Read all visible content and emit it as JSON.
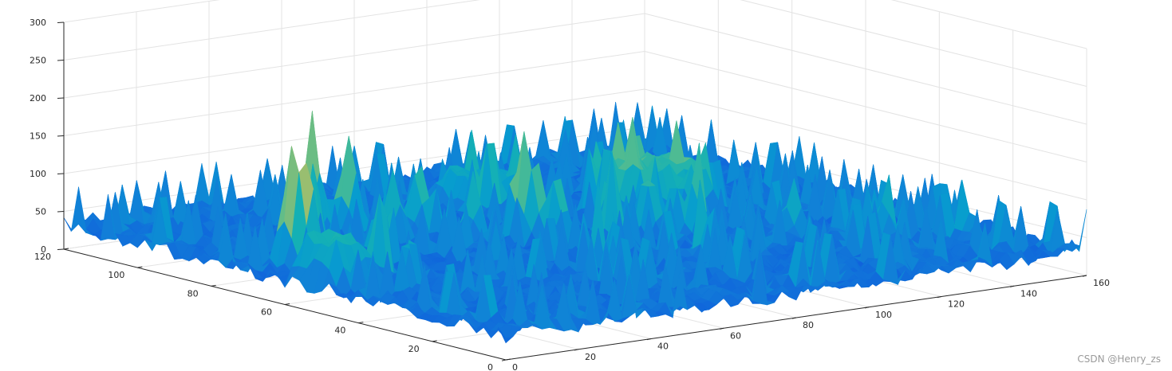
{
  "chart_data": {
    "type": "surface3d",
    "colormap": "parula",
    "grid": true,
    "x_axis": {
      "ticks": [
        0,
        20,
        40,
        60,
        80,
        100,
        120,
        140,
        160
      ],
      "range": [
        0,
        160
      ]
    },
    "y_axis": {
      "ticks": [
        0,
        20,
        40,
        60,
        80,
        100,
        120
      ],
      "range": [
        0,
        120
      ]
    },
    "z_axis": {
      "ticks": [
        0,
        50,
        100,
        150,
        200,
        250,
        300
      ],
      "range": [
        0,
        300
      ]
    },
    "base_level": 30,
    "peaks": [
      {
        "x": 12,
        "y": 70,
        "z": 180
      },
      {
        "x": 14,
        "y": 67,
        "z": 150
      },
      {
        "x": 38,
        "y": 90,
        "z": 185
      },
      {
        "x": 44,
        "y": 86,
        "z": 160
      },
      {
        "x": 27,
        "y": 80,
        "z": 95
      },
      {
        "x": 48,
        "y": 78,
        "z": 120
      },
      {
        "x": 57,
        "y": 80,
        "z": 130
      },
      {
        "x": 62,
        "y": 70,
        "z": 115
      },
      {
        "x": 72,
        "y": 65,
        "z": 130
      },
      {
        "x": 75,
        "y": 60,
        "z": 125
      },
      {
        "x": 85,
        "y": 55,
        "z": 120
      },
      {
        "x": 95,
        "y": 55,
        "z": 125
      },
      {
        "x": 103,
        "y": 50,
        "z": 110
      },
      {
        "x": 112,
        "y": 60,
        "z": 110
      },
      {
        "x": 120,
        "y": 40,
        "z": 105
      },
      {
        "x": 134,
        "y": 30,
        "z": 85
      },
      {
        "x": 148,
        "y": 20,
        "z": 70
      },
      {
        "x": 31,
        "y": 65,
        "z": 100
      },
      {
        "x": 20,
        "y": 55,
        "z": 90
      },
      {
        "x": 66,
        "y": 40,
        "z": 85
      },
      {
        "x": 90,
        "y": 35,
        "z": 80
      }
    ],
    "plateaus": [
      {
        "x_range": [
          2,
          14
        ],
        "y_range": [
          48,
          60
        ],
        "z": 85
      },
      {
        "x_range": [
          100,
          122
        ],
        "y_range": [
          62,
          78
        ],
        "z": 95
      },
      {
        "x_range": [
          78,
          94
        ],
        "y_range": [
          82,
          98
        ],
        "z": 70
      }
    ]
  },
  "watermark": "CSDN @Henry_zs"
}
